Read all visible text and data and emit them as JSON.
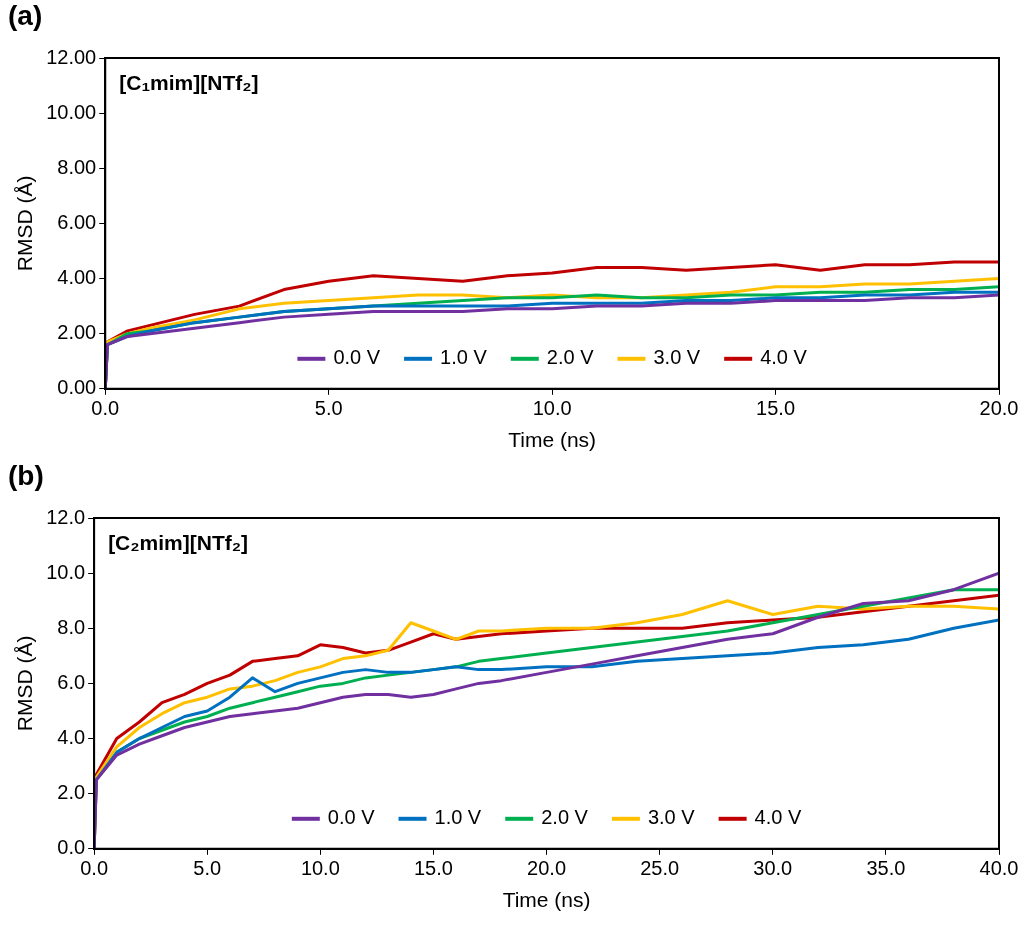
{
  "chart_data": [
    {
      "type": "line",
      "title": "(a)",
      "xlabel": "Time (ns)",
      "ylabel": "RMSD (Å)",
      "annotations": [
        "[C₁mim][NTf₂]"
      ],
      "x": [
        0,
        0.05,
        0.5,
        1,
        2,
        3,
        4,
        5,
        6,
        7,
        8,
        9,
        10,
        11,
        12,
        13,
        14,
        15,
        16,
        17,
        18,
        19,
        20
      ],
      "series": [
        {
          "name": "0.0 V",
          "color": "#7030a0",
          "values": [
            0,
            1.6,
            1.9,
            2.0,
            2.2,
            2.4,
            2.6,
            2.7,
            2.8,
            2.8,
            2.8,
            2.9,
            2.9,
            3.0,
            3.0,
            3.1,
            3.1,
            3.2,
            3.2,
            3.2,
            3.3,
            3.3,
            3.4
          ]
        },
        {
          "name": "1.0 V",
          "color": "#0070c0",
          "values": [
            0,
            1.6,
            1.9,
            2.1,
            2.4,
            2.6,
            2.8,
            2.9,
            3.0,
            3.0,
            3.0,
            3.0,
            3.1,
            3.1,
            3.1,
            3.2,
            3.2,
            3.3,
            3.3,
            3.4,
            3.4,
            3.5,
            3.5
          ]
        },
        {
          "name": "2.0 V",
          "color": "#00b050",
          "values": [
            0,
            1.6,
            2.0,
            2.1,
            2.4,
            2.6,
            2.8,
            2.9,
            3.0,
            3.1,
            3.2,
            3.3,
            3.3,
            3.4,
            3.3,
            3.3,
            3.4,
            3.4,
            3.5,
            3.5,
            3.6,
            3.6,
            3.7
          ]
        },
        {
          "name": "3.0 V",
          "color": "#ffc000",
          "values": [
            0,
            1.7,
            2.0,
            2.2,
            2.5,
            2.9,
            3.1,
            3.2,
            3.3,
            3.4,
            3.4,
            3.3,
            3.4,
            3.3,
            3.3,
            3.4,
            3.5,
            3.7,
            3.7,
            3.8,
            3.8,
            3.9,
            4.0
          ]
        },
        {
          "name": "4.0 V",
          "color": "#c00000",
          "values": [
            0,
            1.7,
            2.1,
            2.3,
            2.7,
            3.0,
            3.6,
            3.9,
            4.1,
            4.0,
            3.9,
            4.1,
            4.2,
            4.4,
            4.4,
            4.3,
            4.4,
            4.5,
            4.3,
            4.5,
            4.5,
            4.6,
            4.6
          ]
        }
      ],
      "xlim": [
        0,
        20
      ],
      "xticks": [
        {
          "value": 0,
          "label": "0.0"
        },
        {
          "value": 5,
          "label": "5.0"
        },
        {
          "value": 10,
          "label": "10.0"
        },
        {
          "value": 15,
          "label": "15.0"
        },
        {
          "value": 20,
          "label": "20.0"
        }
      ],
      "ylim": [
        0,
        12
      ],
      "yticks": [
        {
          "value": 0,
          "label": "0.00"
        },
        {
          "value": 2,
          "label": "2.00"
        },
        {
          "value": 4,
          "label": "4.00"
        },
        {
          "value": 6,
          "label": "6.00"
        },
        {
          "value": 8,
          "label": "8.00"
        },
        {
          "value": 10,
          "label": "10.00"
        },
        {
          "value": 12,
          "label": "12.00"
        }
      ],
      "legend": "bottom",
      "marker": "none",
      "line_style": "solid"
    },
    {
      "type": "line",
      "title": "(b)",
      "xlabel": "Time (ns)",
      "ylabel": "RMSD (Å)",
      "annotations": [
        "[C₂mim][NTf₂]"
      ],
      "x": [
        0,
        0.1,
        1,
        2,
        3,
        4,
        5,
        6,
        7,
        8,
        9,
        10,
        11,
        12,
        13,
        14,
        15,
        16,
        17,
        18,
        20,
        22,
        24,
        26,
        28,
        30,
        32,
        34,
        36,
        38,
        40
      ],
      "series": [
        {
          "name": "0.0 V",
          "color": "#7030a0",
          "values": [
            0,
            2.5,
            3.4,
            3.8,
            4.1,
            4.4,
            4.6,
            4.8,
            4.9,
            5.0,
            5.1,
            5.3,
            5.5,
            5.6,
            5.6,
            5.5,
            5.6,
            5.8,
            6.0,
            6.1,
            6.4,
            6.7,
            7.0,
            7.3,
            7.6,
            7.8,
            8.4,
            8.9,
            9.0,
            9.4,
            10.0
          ]
        },
        {
          "name": "1.0 V",
          "color": "#0070c0",
          "values": [
            0,
            2.5,
            3.5,
            4.0,
            4.4,
            4.8,
            5.0,
            5.5,
            6.2,
            5.7,
            6.0,
            6.2,
            6.4,
            6.5,
            6.4,
            6.4,
            6.5,
            6.6,
            6.5,
            6.5,
            6.6,
            6.6,
            6.8,
            6.9,
            7.0,
            7.1,
            7.3,
            7.4,
            7.6,
            8.0,
            8.3
          ]
        },
        {
          "name": "2.0 V",
          "color": "#00b050",
          "values": [
            null,
            null,
            3.5,
            4.0,
            4.3,
            4.6,
            4.8,
            5.1,
            5.3,
            5.5,
            5.7,
            5.9,
            6.0,
            6.2,
            6.3,
            6.4,
            6.5,
            6.6,
            6.8,
            6.9,
            7.1,
            7.3,
            7.5,
            7.7,
            7.9,
            8.2,
            8.5,
            8.8,
            9.1,
            9.4,
            9.4
          ]
        },
        {
          "name": "3.0 V",
          "color": "#ffc000",
          "values": [
            0,
            2.6,
            3.7,
            4.4,
            4.9,
            5.3,
            5.5,
            5.8,
            5.9,
            6.1,
            6.4,
            6.6,
            6.9,
            7.0,
            7.2,
            8.2,
            7.9,
            7.6,
            7.9,
            7.9,
            8.0,
            8.0,
            8.2,
            8.5,
            9.0,
            8.5,
            8.8,
            8.7,
            8.8,
            8.8,
            8.7
          ]
        },
        {
          "name": "4.0 V",
          "color": "#c00000",
          "values": [
            0,
            2.7,
            4.0,
            4.6,
            5.3,
            5.6,
            6.0,
            6.3,
            6.8,
            6.9,
            7.0,
            7.4,
            7.3,
            7.1,
            7.2,
            7.5,
            7.8,
            7.6,
            7.7,
            7.8,
            7.9,
            8.0,
            8.0,
            8.0,
            8.2,
            8.3,
            8.4,
            8.6,
            8.8,
            9.0,
            9.2
          ]
        }
      ],
      "xlim": [
        0,
        40
      ],
      "xticks": [
        {
          "value": 0,
          "label": "0.0"
        },
        {
          "value": 5,
          "label": "5.0"
        },
        {
          "value": 10,
          "label": "10.0"
        },
        {
          "value": 15,
          "label": "15.0"
        },
        {
          "value": 20,
          "label": "20.0"
        },
        {
          "value": 25,
          "label": "25.0"
        },
        {
          "value": 30,
          "label": "30.0"
        },
        {
          "value": 35,
          "label": "35.0"
        },
        {
          "value": 40,
          "label": "40.0"
        }
      ],
      "ylim": [
        0,
        12
      ],
      "yticks": [
        {
          "value": 0,
          "label": "0.0"
        },
        {
          "value": 2,
          "label": "2.0"
        },
        {
          "value": 4,
          "label": "4.0"
        },
        {
          "value": 6,
          "label": "6.0"
        },
        {
          "value": 8,
          "label": "8.0"
        },
        {
          "value": 10,
          "label": "10.0"
        },
        {
          "value": 12,
          "label": "12.0"
        }
      ],
      "legend": "bottom",
      "marker": "none",
      "line_style": "solid"
    }
  ]
}
